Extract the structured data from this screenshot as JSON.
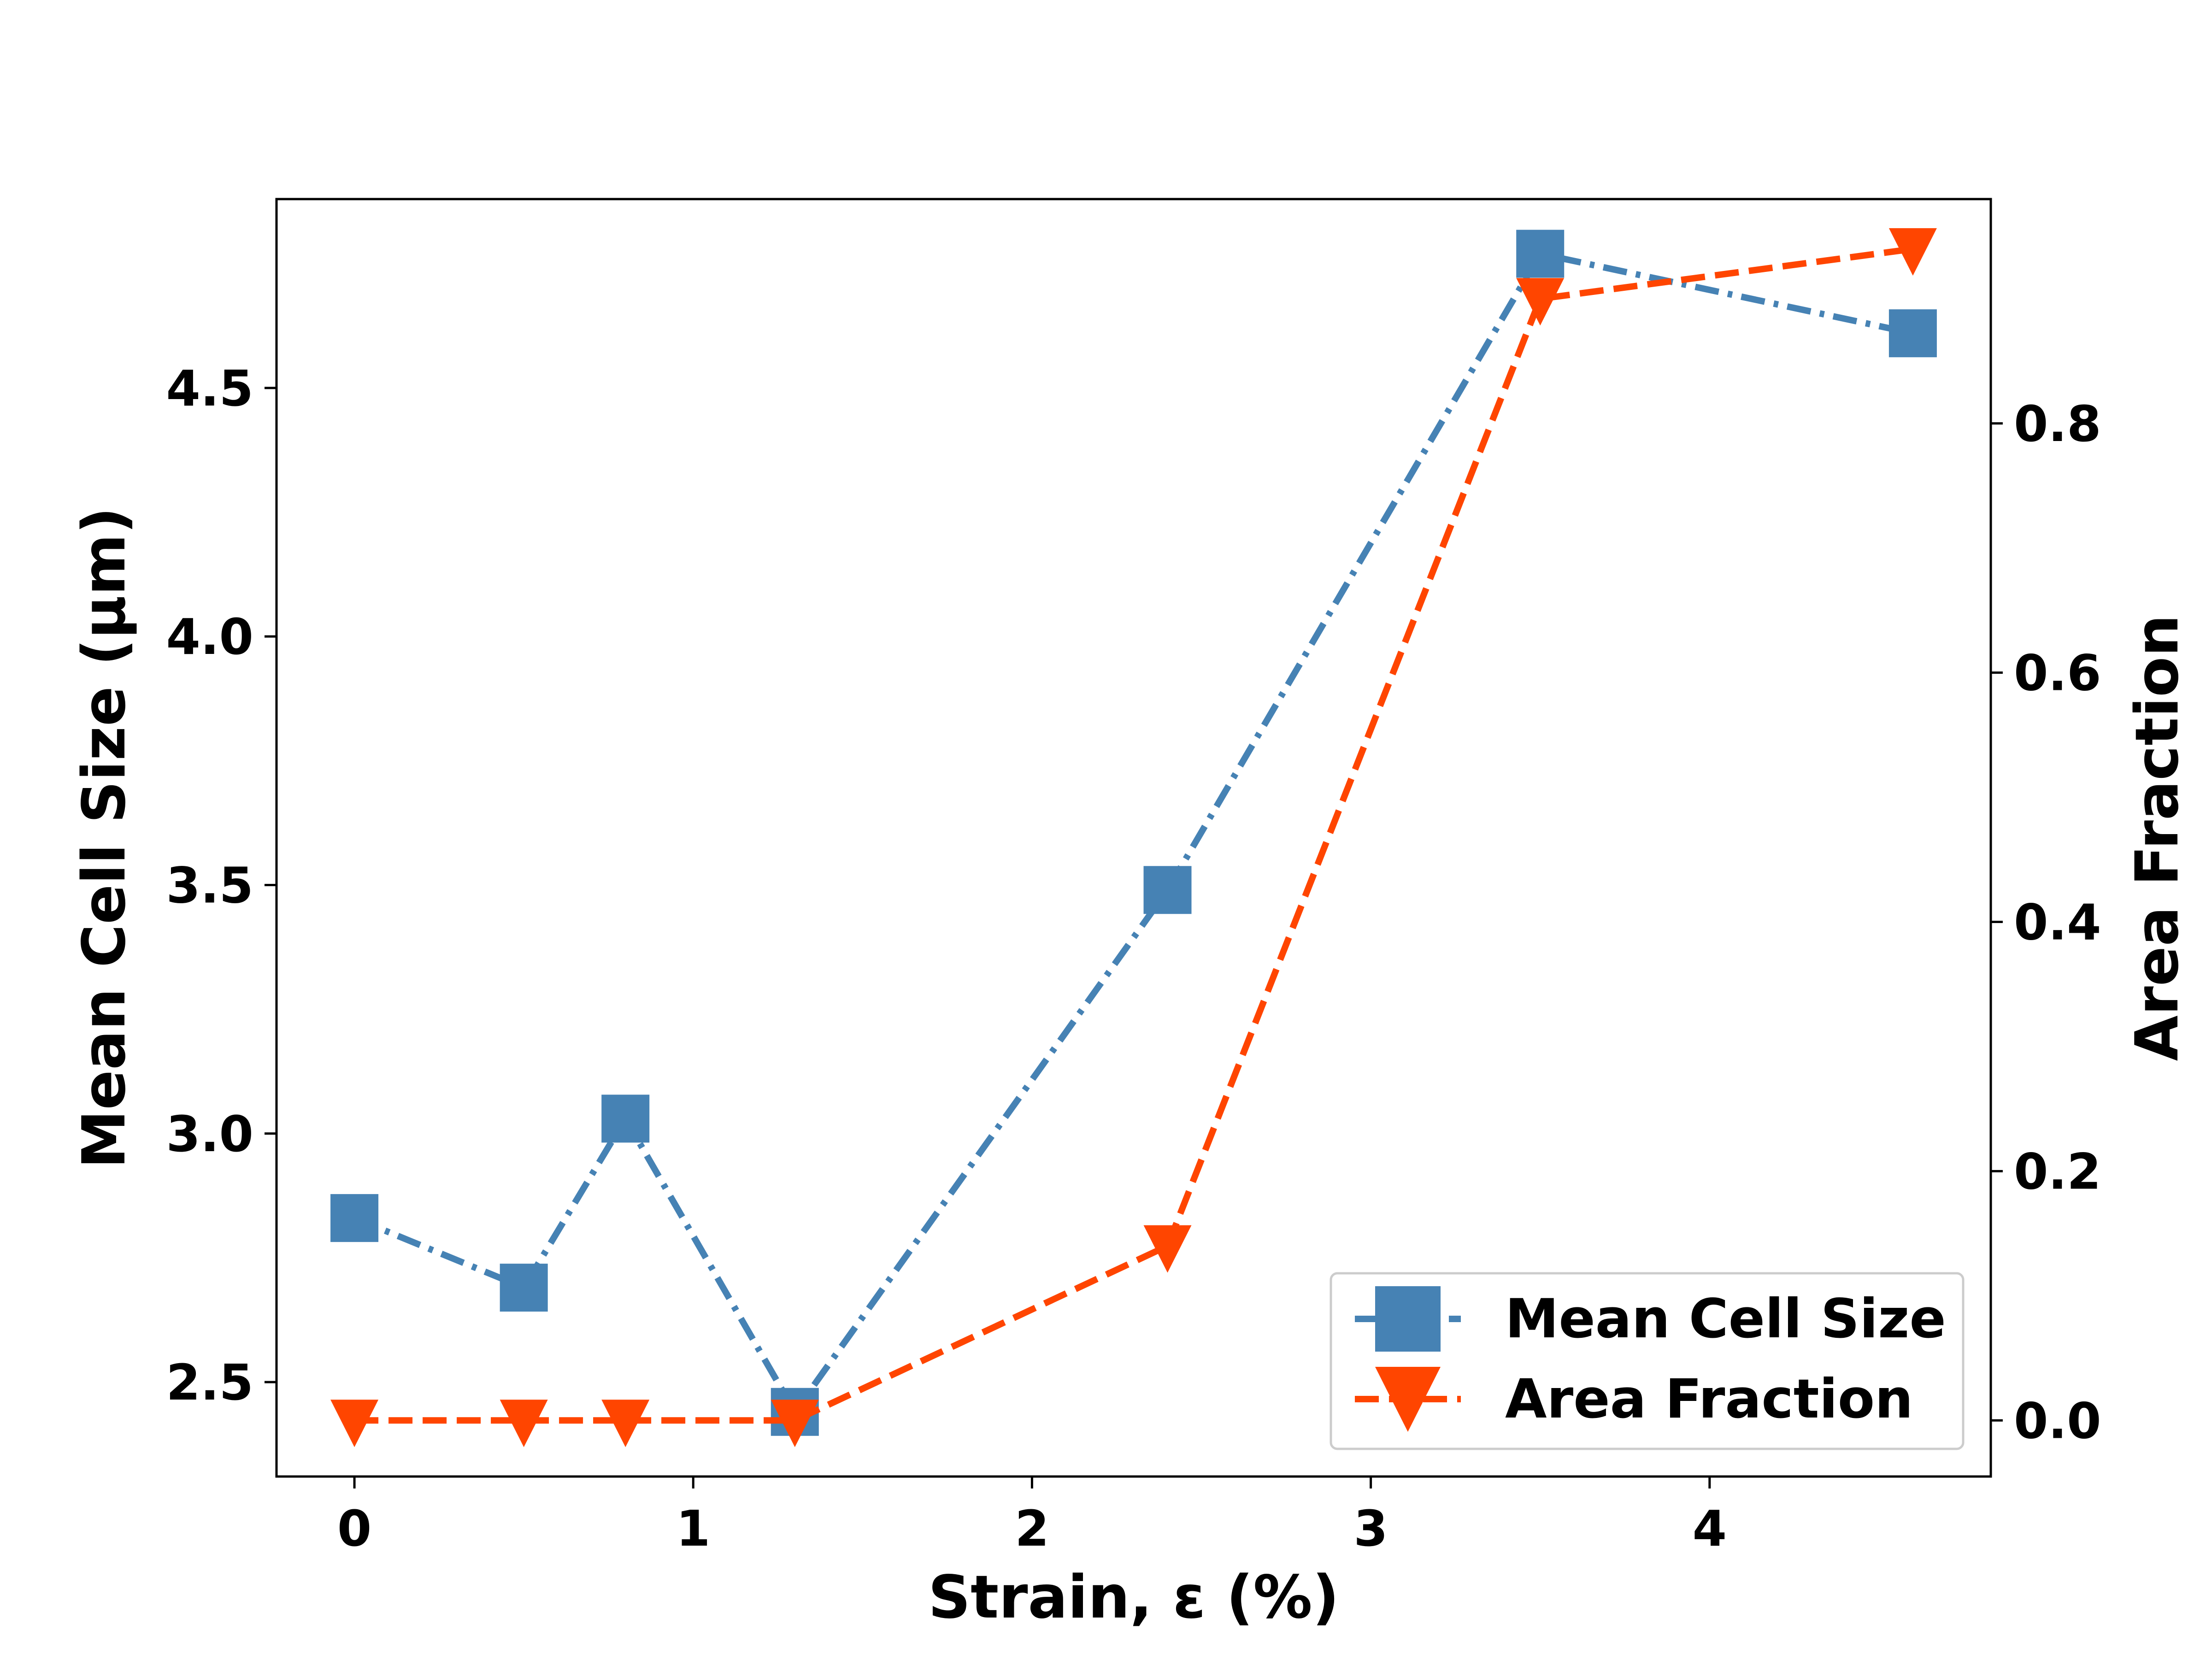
{
  "chart_data": {
    "type": "line",
    "x": [
      0,
      0.5,
      0.8,
      1.3,
      2.4,
      3.5,
      4.6
    ],
    "xlabel": "Strain, ε (%)",
    "xlim": [
      -0.23,
      4.83
    ],
    "xticks": [
      0,
      1,
      2,
      3,
      4
    ],
    "ylabel_left": "Mean Cell Size (μm)",
    "ylim_left": [
      2.31,
      4.88
    ],
    "yticks_left": [
      2.5,
      3.0,
      3.5,
      4.0,
      4.5
    ],
    "ylabel_right": "Area Fraction",
    "ylim_right": [
      -0.045,
      0.98
    ],
    "yticks_right": [
      0.0,
      0.2,
      0.4,
      0.6,
      0.8
    ],
    "grid": false,
    "legend_position": "lower-right",
    "series": [
      {
        "name": "Mean Cell Size",
        "axis": "left",
        "values": [
          2.83,
          2.69,
          3.03,
          2.44,
          3.49,
          4.77,
          4.61
        ],
        "color": "#4682b4",
        "marker": "square",
        "linestyle": "dash-dot"
      },
      {
        "name": "Area Fraction",
        "axis": "right",
        "values": [
          0.0,
          0.0,
          0.0,
          0.0,
          0.14,
          0.9,
          0.94
        ],
        "color": "#ff4500",
        "marker": "triangle-down",
        "linestyle": "dashed"
      }
    ]
  }
}
